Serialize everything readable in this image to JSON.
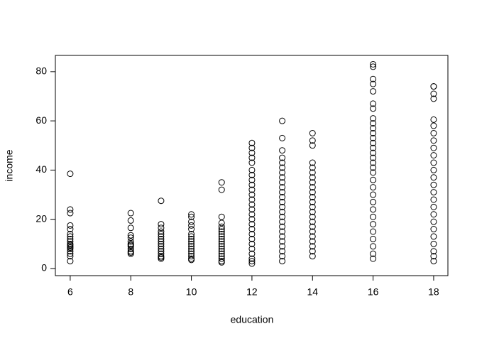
{
  "chart_data": {
    "type": "scatter",
    "xlabel": "education",
    "ylabel": "income",
    "color": "#000000",
    "xlim": [
      5.51,
      18.47
    ],
    "ylim": [
      -2.9,
      86.6
    ],
    "xticks": [
      6,
      8,
      10,
      12,
      14,
      16,
      18
    ],
    "yticks": [
      0,
      20,
      40,
      60,
      80
    ],
    "x": [
      6,
      6,
      6,
      6,
      6,
      6,
      6,
      6,
      6,
      6,
      6,
      6,
      6,
      6,
      6,
      6,
      6,
      6,
      8,
      8,
      8,
      8,
      8,
      8,
      8,
      8,
      8,
      8,
      8,
      8,
      8,
      9,
      9,
      9,
      9,
      9,
      9,
      9,
      9,
      9,
      9,
      9,
      9,
      9,
      9,
      9,
      9,
      10,
      10,
      10,
      10,
      10,
      10,
      10,
      10,
      10,
      10,
      10,
      10,
      10,
      10,
      10,
      10,
      10,
      11,
      11,
      11,
      11,
      11,
      11,
      11,
      11,
      11,
      11,
      11,
      11,
      11,
      11,
      11,
      11,
      11,
      11,
      11,
      11,
      12,
      12,
      12,
      12,
      12,
      12,
      12,
      12,
      12,
      12,
      12,
      12,
      12,
      12,
      12,
      12,
      12,
      12,
      12,
      12,
      12,
      12,
      12,
      12,
      12,
      12,
      13,
      13,
      13,
      13,
      13,
      13,
      13,
      13,
      13,
      13,
      13,
      13,
      13,
      13,
      13,
      13,
      13,
      13,
      13,
      13,
      13,
      13,
      13,
      13,
      13,
      14,
      14,
      14,
      14,
      14,
      14,
      14,
      14,
      14,
      14,
      14,
      14,
      14,
      14,
      14,
      14,
      14,
      14,
      14,
      14,
      14,
      14,
      14,
      16,
      16,
      16,
      16,
      16,
      16,
      16,
      16,
      16,
      16,
      16,
      16,
      16,
      16,
      16,
      16,
      16,
      16,
      16,
      16,
      16,
      16,
      16,
      16,
      16,
      16,
      16,
      16,
      16,
      16,
      16,
      18,
      18,
      18,
      18,
      18,
      18,
      18,
      18,
      18,
      18,
      18,
      18,
      18,
      18,
      18,
      18,
      18,
      18,
      18,
      18,
      18,
      18,
      18,
      18,
      18
    ],
    "y": [
      38.5,
      24,
      22.5,
      17.5,
      16,
      14,
      13,
      12,
      11,
      10,
      9.5,
      9,
      8.5,
      8,
      7,
      6,
      5,
      3,
      22.5,
      19.5,
      16.5,
      13.5,
      12.5,
      11,
      10,
      9.5,
      9,
      8,
      7,
      6.5,
      6,
      27.5,
      18,
      16.5,
      15,
      14,
      13,
      12,
      11,
      10,
      9,
      8,
      7,
      6,
      5,
      4.5,
      4,
      22,
      21,
      19,
      17.5,
      16,
      14,
      13,
      12,
      11,
      10,
      9,
      8,
      7,
      6,
      5,
      4,
      3.5,
      35,
      32,
      21,
      18.5,
      17,
      16,
      15,
      14,
      13,
      12,
      11,
      10,
      9,
      8,
      7,
      6,
      5,
      4,
      3,
      2.5,
      51,
      49,
      47,
      45,
      43,
      40,
      38,
      36,
      34,
      32,
      30,
      28,
      26,
      24,
      22,
      20,
      18,
      16,
      14,
      12,
      10,
      8,
      6,
      4,
      3,
      2,
      60,
      53,
      48,
      45,
      43,
      41,
      39,
      37,
      35,
      33,
      31,
      29,
      27,
      25,
      23,
      21,
      19,
      17,
      15,
      13,
      11,
      9,
      7,
      5,
      3,
      55,
      52,
      50,
      43,
      41,
      39,
      37,
      35,
      33,
      31,
      29,
      27,
      25,
      23,
      21,
      19,
      17,
      15,
      13,
      11,
      9,
      7,
      5,
      83,
      82,
      77,
      75,
      72,
      67,
      65,
      61,
      59,
      57,
      55,
      53,
      51,
      49,
      47,
      45,
      43,
      41,
      39,
      36,
      33,
      30,
      27,
      24,
      21,
      18,
      15,
      12,
      9,
      6,
      4,
      74,
      74,
      71,
      69,
      60.5,
      58,
      55,
      52,
      49,
      46,
      43,
      40,
      37,
      34,
      31,
      28,
      25,
      22,
      19,
      16,
      13,
      10,
      7,
      5,
      3
    ]
  }
}
